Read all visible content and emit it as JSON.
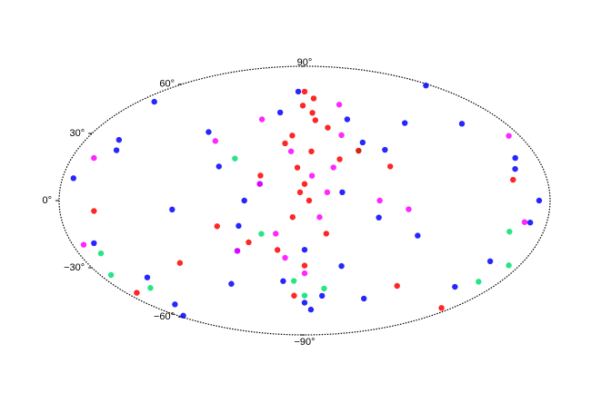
{
  "chart_data": {
    "type": "scatter",
    "yticks": [
      {
        "value": 90,
        "label": "90°"
      },
      {
        "value": 60,
        "label": "60°"
      },
      {
        "value": 30,
        "label": "30°"
      },
      {
        "value": 0,
        "label": "0°"
      },
      {
        "value": -30,
        "label": "−30°"
      },
      {
        "value": -60,
        "label": "−60°"
      },
      {
        "value": -90,
        "label": "−90°"
      }
    ],
    "ylim": [
      -90,
      90
    ],
    "xlim": [
      -180,
      180
    ],
    "series": [
      {
        "color": "#0000ff",
        "x": [
          -170,
          -160,
          -150,
          -140,
          170,
          160,
          150,
          140,
          -60,
          -50,
          -40,
          60,
          50,
          40,
          70,
          -70,
          0,
          20,
          -20,
          80,
          -80,
          175,
          -175,
          165,
          -165,
          30,
          -30,
          10,
          -10,
          90,
          -90,
          155,
          -155,
          45,
          -45,
          0,
          25,
          -25,
          145,
          -145
        ],
        "values": [
          0,
          20,
          -30,
          40,
          10,
          -20,
          30,
          -40,
          30,
          -10,
          50,
          20,
          -30,
          0,
          -50,
          -60,
          -30,
          -50,
          -60,
          40,
          -20,
          -60,
          60,
          50,
          -10,
          10,
          -40,
          70,
          -70,
          -5,
          45,
          -55,
          15,
          -15,
          35,
          -65,
          55,
          5,
          25,
          -45
        ]
      },
      {
        "color": "#ff00ff",
        "x": [
          -30,
          -20,
          -10,
          10,
          20,
          30,
          -50,
          50,
          -160,
          160,
          -40,
          40,
          0,
          15,
          -15,
          70,
          -70,
          170,
          -170,
          -5
        ],
        "values": [
          40,
          20,
          -10,
          30,
          -20,
          10,
          0,
          -30,
          -10,
          20,
          60,
          50,
          -45,
          -35,
          5,
          35,
          -5,
          -20,
          30,
          15
        ]
      },
      {
        "color": "#00e070",
        "x": [
          -170,
          -160,
          170,
          160,
          -20,
          10,
          30,
          -40,
          150,
          -150,
          0,
          50
        ],
        "values": [
          -30,
          -40,
          -35,
          -25,
          -55,
          -50,
          -20,
          30,
          -45,
          -15,
          -60,
          25
        ]
      },
      {
        "color": "#ff0000",
        "x": [
          0,
          5,
          -5,
          10,
          -10,
          2,
          -3,
          8,
          -15,
          20,
          -25,
          30,
          15,
          -20,
          0,
          3,
          -8,
          40,
          -40,
          60,
          -60,
          150,
          -150,
          170,
          -170,
          100,
          -90,
          0,
          12,
          -12
        ],
        "values": [
          10,
          20,
          30,
          40,
          50,
          60,
          0,
          -10,
          -20,
          -30,
          25,
          15,
          35,
          45,
          -40,
          5,
          55,
          -25,
          30,
          -15,
          20,
          -5,
          10,
          -45,
          -55,
          -35,
          -50,
          70,
          -60,
          65
        ]
      }
    ]
  }
}
